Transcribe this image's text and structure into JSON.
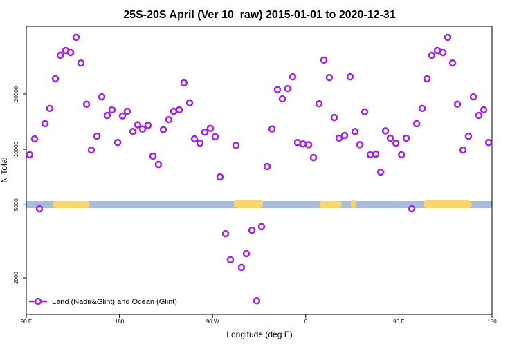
{
  "chart_data": {
    "type": "scatter",
    "title": "25S-20S April (Ver 10_raw)   2015-01-01 to 2020-12-31",
    "x_label": "Longitude (deg E)",
    "y_label": "N Total",
    "xlim": [
      90,
      540
    ],
    "xticks": [
      {
        "value": 90,
        "label": "90 E"
      },
      {
        "value": 180,
        "label": "180"
      },
      {
        "value": 270,
        "label": "90 W"
      },
      {
        "value": 360,
        "label": "0"
      },
      {
        "value": 450,
        "label": "90 E"
      },
      {
        "value": 540,
        "label": "180"
      }
    ],
    "ylim": [
      1265,
      46700
    ],
    "yticks": [
      2000,
      5000,
      10000,
      20000
    ],
    "log_y": true,
    "legend": "bottom-left",
    "series": [
      {
        "name": "Land (Nadir&Glint) and Ocean (Glint)",
        "color": "#a020f0",
        "x": [
          93.3,
          98.0,
          102.7,
          108.1,
          112.7,
          118.1,
          122.8,
          128.1,
          132.8,
          138.1,
          142.8,
          148.2,
          152.8,
          158.2,
          162.9,
          168.2,
          172.9,
          178.3,
          182.9,
          187.6,
          193.0,
          197.6,
          202.3,
          207.7,
          212.4,
          217.7,
          222.4,
          227.7,
          232.4,
          237.8,
          242.4,
          247.8,
          252.5,
          257.8,
          262.5,
          267.8,
          272.5,
          277.2,
          282.6,
          287.2,
          292.6,
          297.9,
          302.6,
          308.0,
          312.6,
          317.3,
          322.7,
          327.4,
          332.7,
          337.4,
          342.7,
          347.4,
          352.1,
          357.4,
          362.8,
          367.5,
          372.8,
          377.5,
          382.8,
          387.5,
          392.2,
          397.6,
          402.9,
          407.6,
          412.3,
          417.0,
          422.4,
          427.7,
          432.4,
          437.1,
          441.7,
          447.1,
          452.5,
          457.1,
          462.5,
          467.2,
          472.5,
          477.2,
          481.8,
          487.2,
          492.6,
          497.2,
          501.9,
          506.6,
          511.9,
          517.2,
          521.9,
          527.3,
          532.0,
          536.7
        ],
        "values": [
          9340,
          11400,
          4750,
          13800,
          16700,
          24200,
          32500,
          34500,
          33600,
          40700,
          29500,
          17600,
          9910,
          11800,
          19300,
          15300,
          16400,
          10900,
          15200,
          16100,
          12500,
          13600,
          12900,
          13500,
          9180,
          8270,
          12800,
          14500,
          16100,
          16400,
          23000,
          17900,
          11400,
          10800,
          12400,
          13000,
          11700,
          7080,
          3480,
          2510,
          10500,
          2280,
          2710,
          3630,
          1500,
          3800,
          8060,
          12900,
          21100,
          18800,
          21400,
          24800,
          10900,
          10700,
          10600,
          9020,
          17700,
          30600,
          24600,
          14900,
          11500,
          11900,
          24800,
          12500,
          10600,
          16000,
          9340,
          9420,
          7520,
          12600,
          11500,
          10800,
          9340,
          11500,
          4750,
          13800,
          16700,
          24200,
          32500,
          34500,
          33600,
          40700,
          29500,
          17600,
          9910,
          11800,
          19300,
          15300,
          16400,
          10900
        ]
      }
    ]
  }
}
